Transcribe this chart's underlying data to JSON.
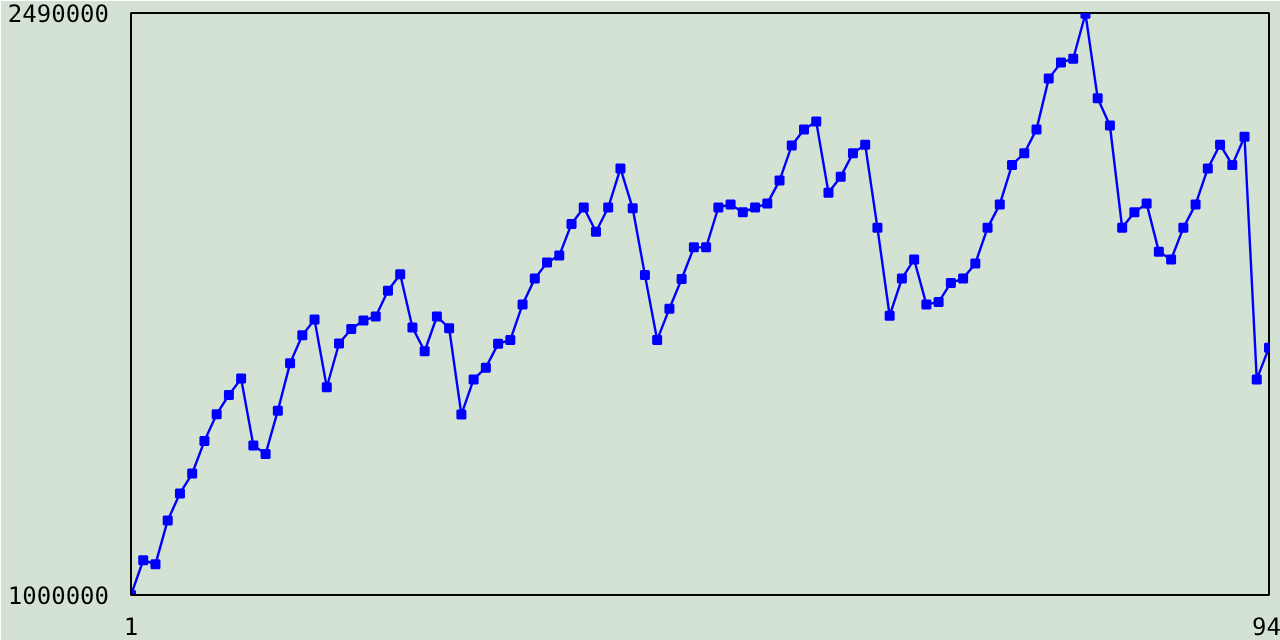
{
  "chart_data": {
    "type": "line",
    "x": [
      1,
      2,
      3,
      4,
      5,
      6,
      7,
      8,
      9,
      10,
      11,
      12,
      13,
      14,
      15,
      16,
      17,
      18,
      19,
      20,
      21,
      22,
      23,
      24,
      25,
      26,
      27,
      28,
      29,
      30,
      31,
      32,
      33,
      34,
      35,
      36,
      37,
      38,
      39,
      40,
      41,
      42,
      43,
      44,
      45,
      46,
      47,
      48,
      49,
      50,
      51,
      52,
      53,
      54,
      55,
      56,
      57,
      58,
      59,
      60,
      61,
      62,
      63,
      64,
      65,
      66,
      67,
      68,
      69,
      70,
      71,
      72,
      73,
      74,
      75,
      76,
      77,
      78,
      79,
      80,
      81,
      82,
      83,
      84,
      85,
      86,
      87,
      88,
      89,
      90,
      91,
      92,
      93,
      94
    ],
    "series": [
      {
        "color": "#0000ff",
        "values": [
          1000000,
          1089000,
          1079000,
          1191000,
          1260000,
          1311000,
          1394000,
          1463000,
          1512000,
          1554000,
          1383000,
          1361000,
          1472000,
          1593000,
          1665000,
          1705000,
          1532000,
          1644000,
          1681000,
          1703000,
          1713000,
          1779000,
          1821000,
          1685000,
          1624000,
          1713000,
          1683000,
          1462000,
          1552000,
          1582000,
          1643000,
          1653000,
          1744000,
          1810000,
          1851000,
          1869000,
          1950000,
          1992000,
          1930000,
          1992000,
          2092000,
          1990000,
          1819000,
          1653000,
          1733000,
          1809000,
          1890000,
          1890000,
          1992000,
          2000000,
          1980000,
          1992000,
          2002000,
          2061000,
          2151000,
          2192000,
          2212000,
          2030000,
          2071000,
          2131000,
          2153000,
          1940000,
          1715000,
          1810000,
          1859000,
          1744000,
          1750000,
          1799000,
          1810000,
          1849000,
          1940000,
          2000000,
          2101000,
          2131000,
          2192000,
          2322000,
          2363000,
          2373000,
          2488000,
          2272000,
          2202000,
          1940000,
          1980000,
          2002000,
          1879000,
          1859000,
          1940000,
          2000000,
          2092000,
          2153000,
          2101000,
          2173000,
          1552000,
          1633000
        ]
      }
    ],
    "xlim": [
      1,
      94
    ],
    "ylim": [
      1000000,
      2490000
    ],
    "xticks": [
      1,
      94
    ],
    "yticks": [
      1000000,
      2490000
    ],
    "marker": "square",
    "line_style": "solid"
  }
}
